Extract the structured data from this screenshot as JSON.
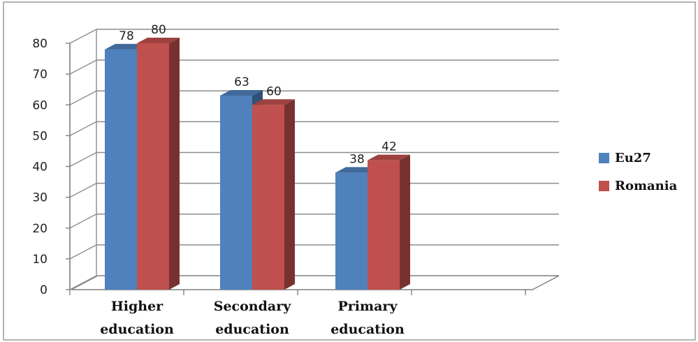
{
  "chart_data": {
    "type": "bar",
    "categories": [
      [
        "Higher",
        "education"
      ],
      [
        "Secondary",
        "education"
      ],
      [
        "Primary",
        "education"
      ]
    ],
    "series": [
      {
        "name": "Eu27",
        "values": [
          78,
          63,
          38
        ],
        "color": "#4f81bd"
      },
      {
        "name": "Romania",
        "values": [
          80,
          60,
          42
        ],
        "color": "#c0504d"
      }
    ],
    "ylim": [
      0,
      80
    ],
    "yticks": [
      0,
      10,
      20,
      30,
      40,
      50,
      60,
      70,
      80
    ],
    "grid": true,
    "legend": "right",
    "style": "3d-clustered-column"
  }
}
